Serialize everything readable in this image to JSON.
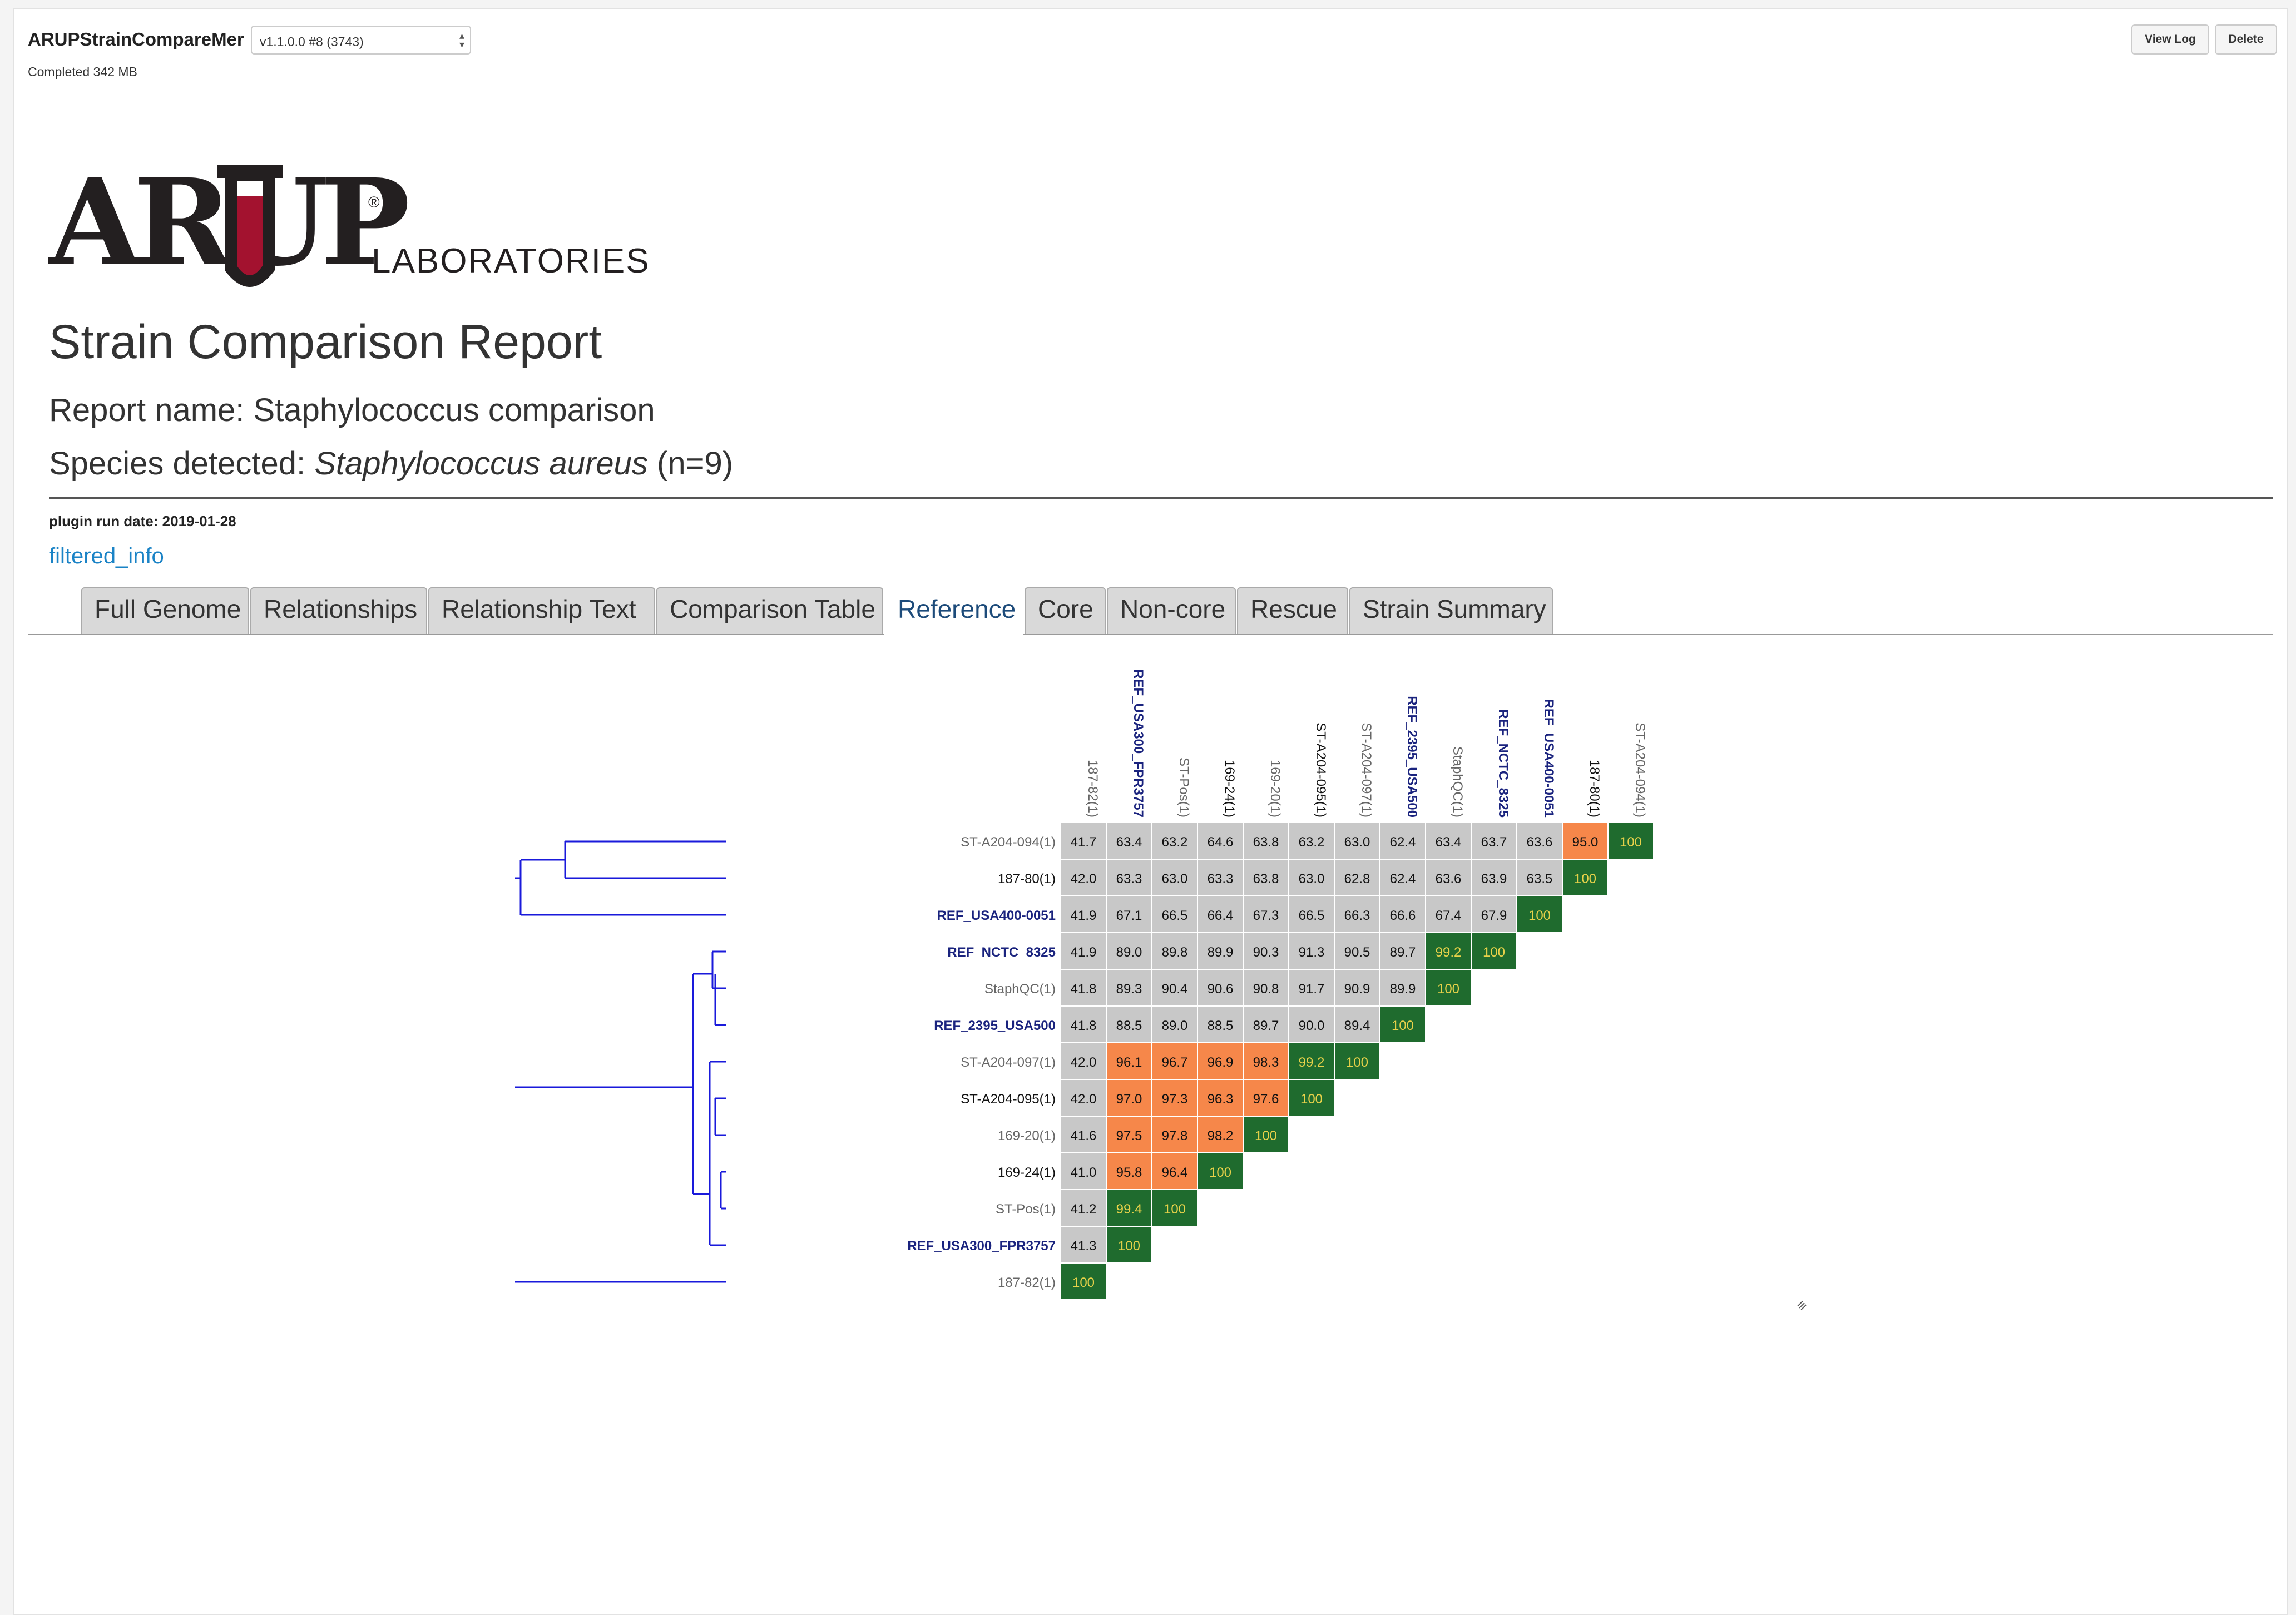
{
  "header": {
    "app_name": "ARUPStrainCompareMer",
    "version_select": "v1.1.0.0 #8 (3743)",
    "status": "Completed 342 MB",
    "view_log_label": "View Log",
    "delete_label": "Delete"
  },
  "logo": {
    "mark": "ARUP",
    "sub": "LABORATORIES",
    "reg": "®"
  },
  "report": {
    "title": "Strain Comparison Report",
    "report_name_label": "Report name: ",
    "report_name": "Staphylococcus comparison",
    "species_label": "Species detected: ",
    "species": "Staphylococcus aureus",
    "species_count": " (n=9)",
    "run_date": "plugin run date: 2019-01-28",
    "filtered_link": "filtered_info"
  },
  "tabs": [
    {
      "label": "Full Genome",
      "active": false
    },
    {
      "label": "Relationships",
      "active": false
    },
    {
      "label": "Relationship Text",
      "active": false
    },
    {
      "label": "Comparison Table",
      "active": false
    },
    {
      "label": "Reference",
      "active": true
    },
    {
      "label": "Core",
      "active": false
    },
    {
      "label": "Non-core",
      "active": false
    },
    {
      "label": "Rescue",
      "active": false
    },
    {
      "label": "Strain Summary",
      "active": false
    }
  ],
  "colors": {
    "gray": "#c8c8c8",
    "orange": "#f6874a",
    "green": "#1f6b2e",
    "green_text": "#e8d24a",
    "ref_label": "#1a237e",
    "tree": "#1a1adb"
  },
  "chart_data": {
    "type": "heatmap",
    "columns": [
      {
        "label": "187-82(1)",
        "style": "gray"
      },
      {
        "label": "REF_USA300_FPR3757",
        "style": "ref"
      },
      {
        "label": "ST-Pos(1)",
        "style": "gray"
      },
      {
        "label": "169-24(1)",
        "style": "black"
      },
      {
        "label": "169-20(1)",
        "style": "gray"
      },
      {
        "label": "ST-A204-095(1)",
        "style": "black"
      },
      {
        "label": "ST-A204-097(1)",
        "style": "gray"
      },
      {
        "label": "REF_2395_USA500",
        "style": "ref"
      },
      {
        "label": "StaphQC(1)",
        "style": "gray"
      },
      {
        "label": "REF_NCTC_8325",
        "style": "ref"
      },
      {
        "label": "REF_USA400-0051",
        "style": "ref"
      },
      {
        "label": "187-80(1)",
        "style": "black"
      },
      {
        "label": "ST-A204-094(1)",
        "style": "gray"
      }
    ],
    "rows": [
      {
        "label": "ST-A204-094(1)",
        "style": "gray",
        "values": [
          "41.7",
          "63.4",
          "63.2",
          "64.6",
          "63.8",
          "63.2",
          "63.0",
          "62.4",
          "63.4",
          "63.7",
          "63.6",
          "95.0",
          "100"
        ]
      },
      {
        "label": "187-80(1)",
        "style": "black",
        "values": [
          "42.0",
          "63.3",
          "63.0",
          "63.3",
          "63.8",
          "63.0",
          "62.8",
          "62.4",
          "63.6",
          "63.9",
          "63.5",
          "100"
        ]
      },
      {
        "label": "REF_USA400-0051",
        "style": "ref",
        "values": [
          "41.9",
          "67.1",
          "66.5",
          "66.4",
          "67.3",
          "66.5",
          "66.3",
          "66.6",
          "67.4",
          "67.9",
          "100"
        ]
      },
      {
        "label": "REF_NCTC_8325",
        "style": "ref",
        "values": [
          "41.9",
          "89.0",
          "89.8",
          "89.9",
          "90.3",
          "91.3",
          "90.5",
          "89.7",
          "99.2",
          "100"
        ]
      },
      {
        "label": "StaphQC(1)",
        "style": "gray",
        "values": [
          "41.8",
          "89.3",
          "90.4",
          "90.6",
          "90.8",
          "91.7",
          "90.9",
          "89.9",
          "100"
        ]
      },
      {
        "label": "REF_2395_USA500",
        "style": "ref",
        "values": [
          "41.8",
          "88.5",
          "89.0",
          "88.5",
          "89.7",
          "90.0",
          "89.4",
          "100"
        ]
      },
      {
        "label": "ST-A204-097(1)",
        "style": "gray",
        "values": [
          "42.0",
          "96.1",
          "96.7",
          "96.9",
          "98.3",
          "99.2",
          "100"
        ]
      },
      {
        "label": "ST-A204-095(1)",
        "style": "black",
        "values": [
          "42.0",
          "97.0",
          "97.3",
          "96.3",
          "97.6",
          "100"
        ]
      },
      {
        "label": "169-20(1)",
        "style": "gray",
        "values": [
          "41.6",
          "97.5",
          "97.8",
          "98.2",
          "100"
        ]
      },
      {
        "label": "169-24(1)",
        "style": "black",
        "values": [
          "41.0",
          "95.8",
          "96.4",
          "100"
        ]
      },
      {
        "label": "ST-Pos(1)",
        "style": "gray",
        "values": [
          "41.2",
          "99.4",
          "100"
        ]
      },
      {
        "label": "REF_USA300_FPR3757",
        "style": "ref",
        "values": [
          "41.3",
          "100"
        ]
      },
      {
        "label": "187-82(1)",
        "style": "gray",
        "values": [
          "100"
        ]
      }
    ]
  }
}
